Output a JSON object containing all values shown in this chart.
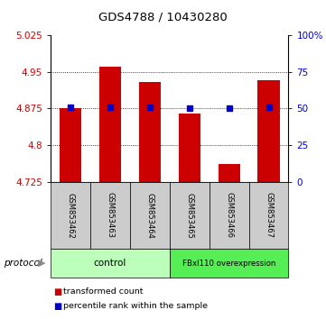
{
  "title": "GDS4788 / 10430280",
  "samples": [
    "GSM853462",
    "GSM853463",
    "GSM853464",
    "GSM853465",
    "GSM853466",
    "GSM853467"
  ],
  "red_values": [
    4.875,
    4.96,
    4.93,
    4.865,
    4.762,
    4.932
  ],
  "blue_values": [
    4.877,
    4.877,
    4.877,
    4.876,
    4.876,
    4.877
  ],
  "ylim_left": [
    4.725,
    5.025
  ],
  "ylim_right": [
    0,
    100
  ],
  "yticks_left": [
    4.725,
    4.8,
    4.875,
    4.95,
    5.025
  ],
  "yticks_right": [
    0,
    25,
    50,
    75,
    100
  ],
  "ytick_labels_left": [
    "4.725",
    "4.8",
    "4.875",
    "4.95",
    "5.025"
  ],
  "ytick_labels_right": [
    "0",
    "25",
    "50",
    "75",
    "100%"
  ],
  "bar_bottom": 4.725,
  "bar_color": "#cc0000",
  "blue_color": "#0000cc",
  "control_label": "control",
  "overexpression_label": "FBxl110 overexpression",
  "control_color": "#bbffbb",
  "overexpression_color": "#55ee55",
  "protocol_label": "protocol",
  "legend_red": "transformed count",
  "legend_blue": "percentile rank within the sample",
  "bar_width": 0.55,
  "sample_box_color": "#cccccc",
  "gridline_y": [
    4.875,
    4.95,
    4.8
  ]
}
